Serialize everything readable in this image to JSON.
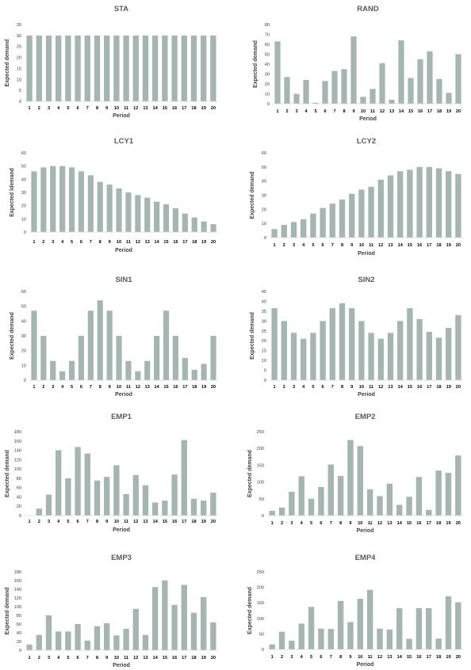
{
  "bar_color": "#A5B5B1",
  "chart_data": [
    {
      "type": "bar",
      "title": "STA",
      "xlabel": "Period",
      "ylabel": "Expected demand",
      "categories": [
        "1",
        "2",
        "3",
        "4",
        "5",
        "6",
        "7",
        "8",
        "9",
        "10",
        "11",
        "12",
        "13",
        "14",
        "15",
        "16",
        "17",
        "18",
        "19",
        "20"
      ],
      "values": [
        30,
        30,
        30,
        30,
        30,
        30,
        30,
        30,
        30,
        30,
        30,
        30,
        30,
        30,
        30,
        30,
        30,
        30,
        30,
        30
      ],
      "ylim": [
        0,
        35
      ],
      "yticks": [
        "0",
        "5",
        "10",
        "15",
        "20",
        "25",
        "30",
        "35"
      ]
    },
    {
      "type": "bar",
      "title": "RAND",
      "xlabel": "Period",
      "ylabel": "Expected demand",
      "categories": [
        "1",
        "2",
        "3",
        "4",
        "5",
        "6",
        "7",
        "8",
        "9",
        "10",
        "11",
        "12",
        "13",
        "14",
        "15",
        "16",
        "17",
        "18",
        "19",
        "20"
      ],
      "values": [
        63,
        27,
        10,
        24,
        1,
        23,
        33,
        35,
        68,
        7,
        15,
        41,
        4,
        64,
        26,
        45,
        53,
        25,
        11,
        50
      ],
      "ylim": [
        0,
        80
      ],
      "yticks": [
        "0",
        "10",
        "20",
        "30",
        "40",
        "50",
        "60",
        "70",
        "80"
      ]
    },
    {
      "type": "bar",
      "title": "LCY1",
      "xlabel": "Period",
      "ylabel": "Expected ldemand",
      "categories": [
        "1",
        "2",
        "3",
        "4",
        "5",
        "6",
        "7",
        "8",
        "9",
        "10",
        "11",
        "12",
        "13",
        "14",
        "15",
        "16",
        "17",
        "18",
        "19",
        "20"
      ],
      "values": [
        46,
        49,
        50,
        50,
        49,
        46,
        43,
        38,
        36,
        33,
        30,
        28,
        26,
        23,
        21,
        18,
        14,
        11,
        8,
        6
      ],
      "ylim": [
        0,
        60
      ],
      "yticks": [
        "0",
        "10",
        "20",
        "30",
        "40",
        "50",
        "60"
      ]
    },
    {
      "type": "bar",
      "title": "LCY2",
      "xlabel": "Period",
      "ylabel": "Expected demand",
      "categories": [
        "1",
        "2",
        "3",
        "4",
        "5",
        "6",
        "7",
        "8",
        "9",
        "10",
        "11",
        "12",
        "13",
        "14",
        "15",
        "16",
        "17",
        "18",
        "19",
        "20"
      ],
      "values": [
        6,
        9,
        11,
        13,
        17,
        21,
        24,
        27,
        31,
        34,
        36,
        41,
        44,
        47,
        48,
        50,
        50,
        49,
        47,
        45
      ],
      "ylim": [
        0,
        60
      ],
      "yticks": [
        "0",
        "10",
        "20",
        "30",
        "40",
        "50",
        "60"
      ]
    },
    {
      "type": "bar",
      "title": "SIN1",
      "xlabel": "Period",
      "ylabel": "Expected demand",
      "categories": [
        "1",
        "2",
        "3",
        "4",
        "5",
        "6",
        "7",
        "8",
        "9",
        "10",
        "11",
        "12",
        "13",
        "14",
        "15",
        "16",
        "17",
        "18",
        "19",
        "20"
      ],
      "values": [
        47,
        30,
        13,
        6,
        13,
        30,
        47,
        54,
        47,
        30,
        13,
        6,
        13,
        30,
        47,
        30,
        15,
        7,
        11,
        30
      ],
      "ylim": [
        0,
        60
      ],
      "yticks": [
        "0",
        "10",
        "20",
        "30",
        "40",
        "50",
        "60"
      ]
    },
    {
      "type": "bar",
      "title": "SIN2",
      "xlabel": "Period",
      "ylabel": "Expected demand",
      "categories": [
        "1",
        "2",
        "3",
        "4",
        "5",
        "6",
        "7",
        "8",
        "9",
        "10",
        "11",
        "12",
        "13",
        "14",
        "15",
        "16",
        "17",
        "18",
        "19",
        "20"
      ],
      "values": [
        36.5,
        30,
        24,
        21,
        24,
        30,
        36.5,
        39,
        36.5,
        30,
        24,
        21,
        24,
        30,
        36.5,
        31,
        24.5,
        21.5,
        26.5,
        33
      ],
      "ylim": [
        0,
        45
      ],
      "yticks": [
        "0",
        "5",
        "10",
        "15",
        "20",
        "25",
        "30",
        "35",
        "40",
        "45"
      ]
    },
    {
      "type": "bar",
      "title": "EMP1",
      "xlabel": "Period",
      "ylabel": "Expected demand",
      "categories": [
        "1",
        "2",
        "3",
        "4",
        "5",
        "6",
        "7",
        "8",
        "9",
        "10",
        "11",
        "12",
        "13",
        "14",
        "15",
        "16",
        "17",
        "18",
        "19",
        "20"
      ],
      "values": [
        0,
        15,
        45,
        140,
        80,
        147,
        133,
        75,
        83,
        108,
        46,
        87,
        65,
        28,
        32,
        88,
        162,
        36,
        32,
        49
      ],
      "ylim": [
        0,
        180
      ],
      "yticks": [
        "0",
        "20",
        "40",
        "60",
        "80",
        "100",
        "120",
        "140",
        "160",
        "180"
      ]
    },
    {
      "type": "bar",
      "title": "EMP2",
      "xlabel": "Period",
      "ylabel": "Expected demand",
      "categories": [
        "1",
        "2",
        "3",
        "4",
        "5",
        "6",
        "7",
        "8",
        "9",
        "10",
        "11",
        "12",
        "13",
        "14",
        "15",
        "16",
        "17",
        "18",
        "19",
        "20"
      ],
      "values": [
        14,
        24,
        71,
        117,
        50,
        85,
        152,
        118,
        225,
        207,
        78,
        58,
        95,
        32,
        56,
        115,
        17,
        134,
        127,
        179
      ],
      "ylim": [
        0,
        250
      ],
      "yticks": [
        "0",
        "50",
        "100",
        "150",
        "200",
        "250"
      ]
    },
    {
      "type": "bar",
      "title": "EMP3",
      "xlabel": "Period",
      "ylabel": "Expected demand",
      "categories": [
        "1",
        "2",
        "3",
        "4",
        "5",
        "6",
        "7",
        "8",
        "9",
        "10",
        "11",
        "12",
        "13",
        "14",
        "15",
        "16",
        "17",
        "18",
        "19",
        "20"
      ],
      "values": [
        13,
        35,
        80,
        43,
        43,
        60,
        22,
        55,
        62,
        34,
        49,
        95,
        35,
        145,
        160,
        104,
        150,
        86,
        122,
        64
      ],
      "ylim": [
        0,
        180
      ],
      "yticks": [
        "0",
        "20",
        "40",
        "60",
        "80",
        "100",
        "120",
        "140",
        "160",
        "180"
      ]
    },
    {
      "type": "bar",
      "title": "EMP4",
      "xlabel": "Period",
      "ylabel": "Expected demand",
      "categories": [
        "1",
        "2",
        "3",
        "4",
        "5",
        "6",
        "7",
        "8",
        "9",
        "10",
        "11",
        "12",
        "13",
        "14",
        "15",
        "16",
        "17",
        "18",
        "19",
        "20"
      ],
      "values": [
        16,
        57,
        28,
        83,
        137,
        67,
        66,
        156,
        88,
        163,
        192,
        67,
        64,
        133,
        34,
        133,
        133,
        35,
        171,
        152
      ],
      "ylim": [
        0,
        250
      ],
      "yticks": [
        "0",
        "50",
        "100",
        "150",
        "200",
        "250"
      ]
    }
  ]
}
